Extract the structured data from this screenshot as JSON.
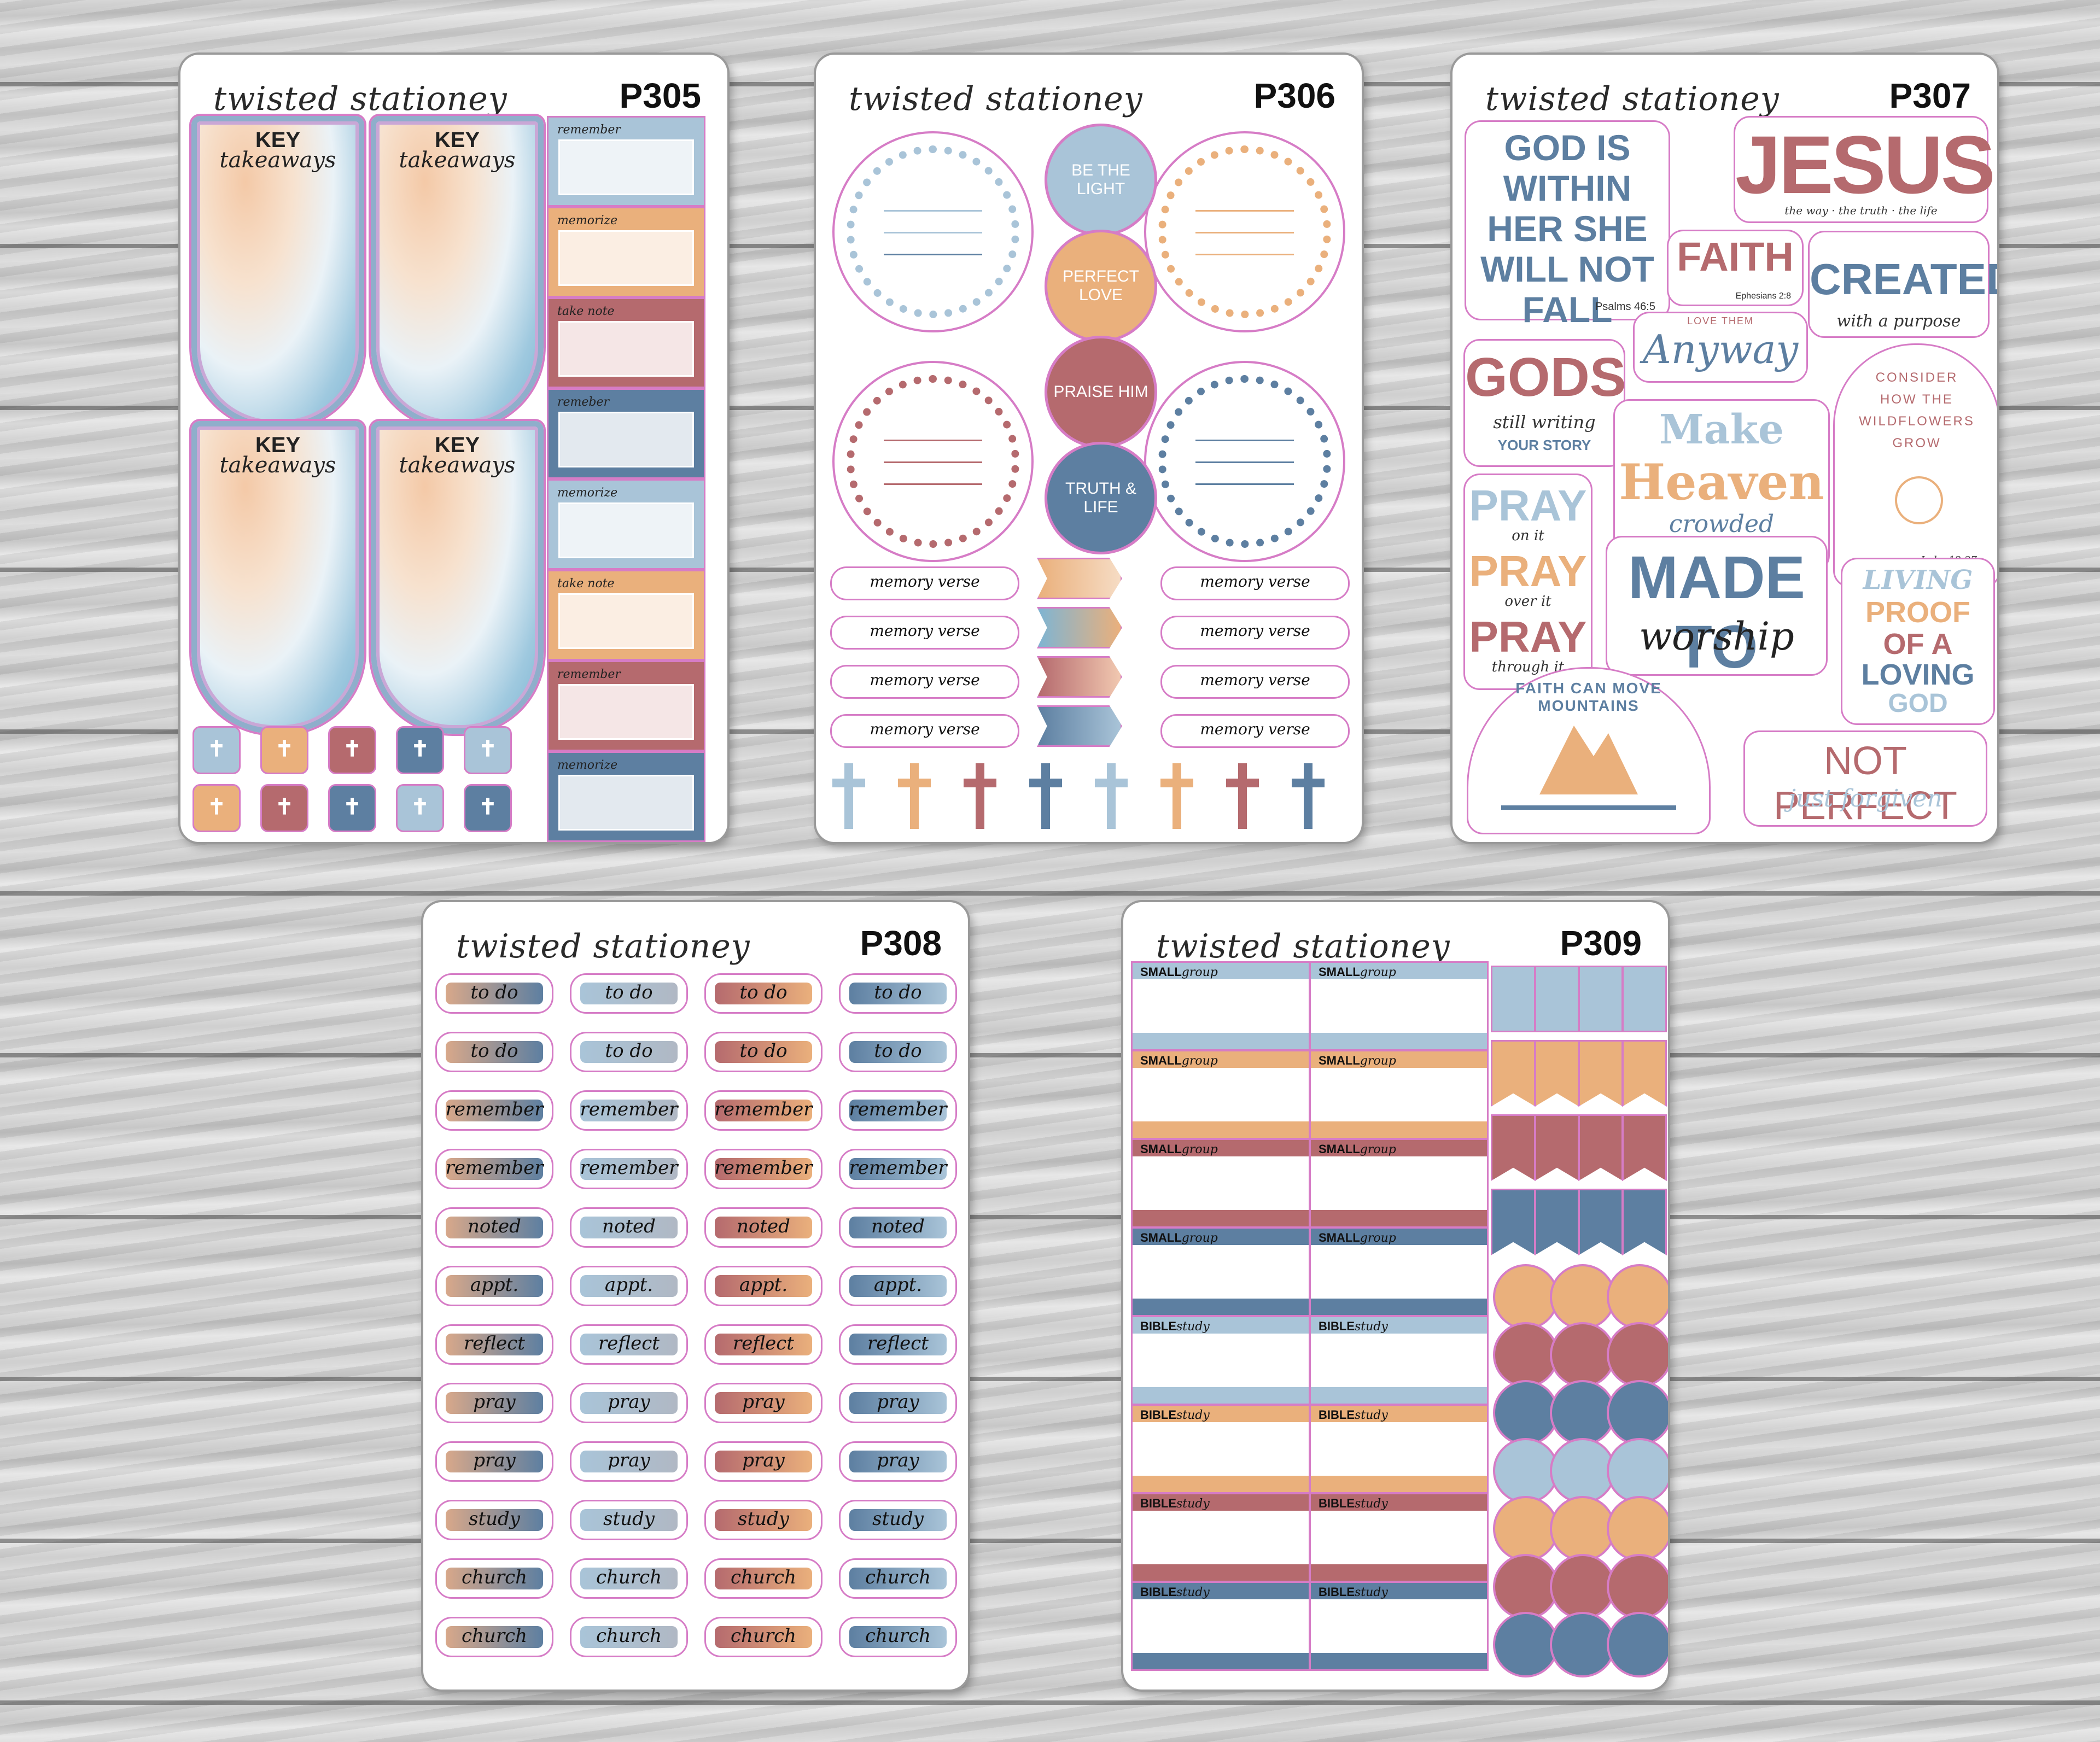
{
  "brand": "twisted stationey",
  "colors": {
    "blue": "#5d7fa1",
    "light_blue": "#a9c4d8",
    "peach": "#eab07c",
    "rose": "#b56a6e",
    "pink_outline": "#d67cc6"
  },
  "sheets": [
    {
      "code": "P305",
      "key_title": "KEY",
      "key_sub": "takeaways",
      "notes": [
        "remember",
        "memorize",
        "take note",
        "remeber",
        "memorize",
        "take note",
        "remember",
        "memorize"
      ],
      "icons": [
        "bible-icon"
      ]
    },
    {
      "code": "P306",
      "circles": [
        "BE THE LIGHT",
        "PERFECT LOVE",
        "PRAISE HIM",
        "TRUTH & LIFE"
      ],
      "memory_label": "memory verse",
      "icons": [
        "wreath-icon",
        "cross-icon",
        "flag-icon"
      ]
    },
    {
      "code": "P307",
      "stickers": {
        "god_within": "GOD IS WITHIN HER SHE WILL NOT FALL",
        "god_within_ref": "Psalms 46:5",
        "jesus": "JESUS",
        "jesus_sub": "the way · the truth · the life",
        "faith": "FAITH",
        "faith_ref": "Ephesians 2:8",
        "created": "CREATED",
        "created_sub": "with a purpose",
        "love_them": "LOVE THEM",
        "anyway": "Anyway",
        "gods": "GODS",
        "still_writing": "still writing",
        "your_story": "YOUR STORY",
        "make": "Make",
        "heaven": "Heaven",
        "crowded": "crowded",
        "consider": "CONSIDER HOW THE WILDFLOWERS GROW",
        "consider_ref": "Luke 12:27",
        "pray": "PRAY",
        "on_it": "on it",
        "over_it": "over it",
        "through_it": "through it",
        "made_to": "MADE TO",
        "worship": "worship",
        "living": "LIVING",
        "proof": "PROOF",
        "of_a": "OF A",
        "loving": "LOVING",
        "god": "GOD",
        "faith_mountains": "FAITH CAN MOVE MOUNTAINS",
        "not_perfect": "NOT PERFECT",
        "just_forgiven": "just forgiven"
      }
    },
    {
      "code": "P308",
      "words": [
        "to do",
        "to do",
        "remember",
        "remember",
        "noted",
        "appt.",
        "reflect",
        "pray",
        "pray",
        "study",
        "church",
        "church"
      ]
    },
    {
      "code": "P309",
      "small": "SMALL",
      "group": "group",
      "bible": "BIBLE",
      "study": "study"
    }
  ]
}
